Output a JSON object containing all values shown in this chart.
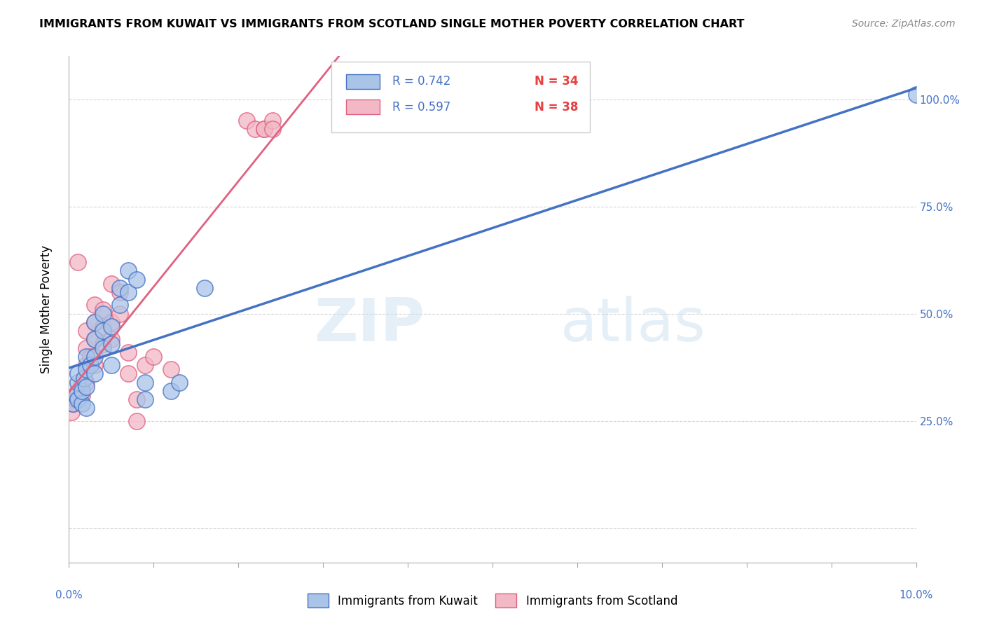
{
  "title": "IMMIGRANTS FROM KUWAIT VS IMMIGRANTS FROM SCOTLAND SINGLE MOTHER POVERTY CORRELATION CHART",
  "source": "Source: ZipAtlas.com",
  "ylabel": "Single Mother Poverty",
  "legend_bottom": [
    "Immigrants from Kuwait",
    "Immigrants from Scotland"
  ],
  "r_kuwait": "0.742",
  "n_kuwait": "34",
  "r_scotland": "0.597",
  "n_scotland": "38",
  "xlim": [
    0.0,
    0.1
  ],
  "ylim": [
    -0.08,
    1.1
  ],
  "color_kuwait": "#aac4e8",
  "color_kuwait_line": "#4472c4",
  "color_scotland": "#f2b8c6",
  "color_scotland_line": "#e06080",
  "color_r_value": "#4472c4",
  "color_n_value": "#e84040",
  "watermark_zip": "ZIP",
  "watermark_atlas": "atlas",
  "kuwait_points_x": [
    0.0005,
    0.0008,
    0.001,
    0.001,
    0.001,
    0.0015,
    0.0015,
    0.0018,
    0.002,
    0.002,
    0.002,
    0.002,
    0.0025,
    0.003,
    0.003,
    0.003,
    0.003,
    0.004,
    0.004,
    0.004,
    0.005,
    0.005,
    0.005,
    0.006,
    0.006,
    0.007,
    0.007,
    0.008,
    0.009,
    0.009,
    0.012,
    0.013,
    0.016,
    0.1
  ],
  "kuwait_points_y": [
    0.29,
    0.31,
    0.3,
    0.34,
    0.36,
    0.29,
    0.32,
    0.35,
    0.28,
    0.33,
    0.37,
    0.4,
    0.38,
    0.36,
    0.4,
    0.44,
    0.48,
    0.42,
    0.46,
    0.5,
    0.38,
    0.43,
    0.47,
    0.52,
    0.56,
    0.55,
    0.6,
    0.58,
    0.3,
    0.34,
    0.32,
    0.34,
    0.56,
    1.01
  ],
  "scotland_points_x": [
    0.0003,
    0.0005,
    0.0008,
    0.001,
    0.001,
    0.001,
    0.0015,
    0.0015,
    0.002,
    0.002,
    0.002,
    0.002,
    0.0025,
    0.003,
    0.003,
    0.003,
    0.003,
    0.004,
    0.004,
    0.004,
    0.005,
    0.005,
    0.005,
    0.006,
    0.006,
    0.007,
    0.007,
    0.008,
    0.008,
    0.009,
    0.01,
    0.012,
    0.021,
    0.022,
    0.023,
    0.023,
    0.024,
    0.024
  ],
  "scotland_points_y": [
    0.27,
    0.29,
    0.3,
    0.3,
    0.32,
    0.62,
    0.31,
    0.34,
    0.34,
    0.38,
    0.42,
    0.46,
    0.4,
    0.38,
    0.44,
    0.48,
    0.52,
    0.43,
    0.47,
    0.51,
    0.44,
    0.48,
    0.57,
    0.5,
    0.55,
    0.36,
    0.41,
    0.3,
    0.25,
    0.38,
    0.4,
    0.37,
    0.95,
    0.93,
    0.93,
    0.93,
    0.95,
    0.93
  ],
  "background_color": "#ffffff"
}
